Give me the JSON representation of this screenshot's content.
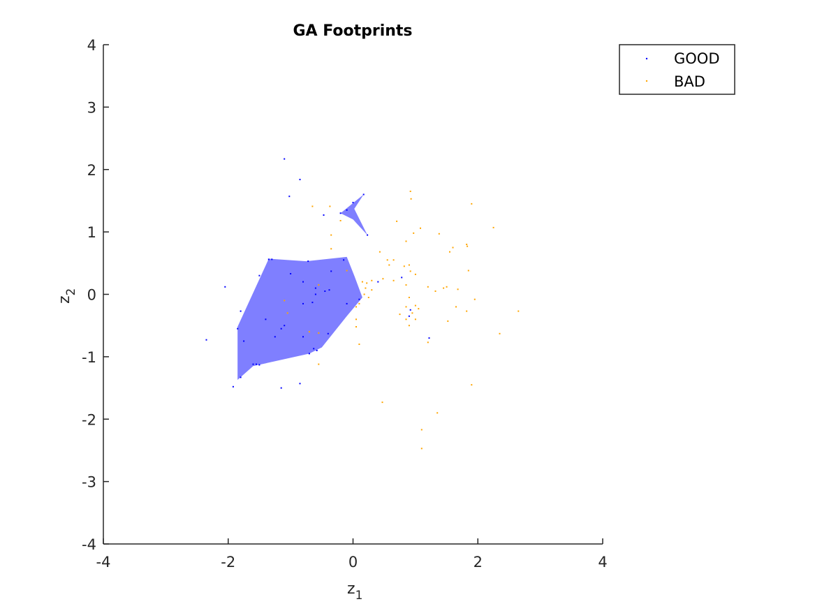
{
  "colors": {
    "good": "#0000ff",
    "bad": "#ffa500",
    "footprint_fill": "#0000ff",
    "axis": "#262626"
  },
  "chart_data": {
    "type": "scatter",
    "title": "GA Footprints",
    "xlabel_base": "z",
    "xlabel_sub": "1",
    "ylabel_base": "z",
    "ylabel_sub": "2",
    "xlim": [
      -4,
      4
    ],
    "ylim": [
      -4,
      4
    ],
    "xticks": [
      -4,
      -2,
      0,
      2,
      4
    ],
    "yticks": [
      -4,
      -3,
      -2,
      -1,
      0,
      1,
      2,
      3,
      4
    ],
    "grid": false,
    "legend_position": "top-right",
    "series": [
      {
        "name": "GOOD",
        "color": "#0000ff",
        "points": [
          [
            -1.1,
            2.17
          ],
          [
            -0.85,
            1.84
          ],
          [
            -1.02,
            1.57
          ],
          [
            -0.47,
            1.27
          ],
          [
            -0.1,
            1.35
          ],
          [
            0.17,
            1.6
          ],
          [
            0.0,
            1.47
          ],
          [
            0.23,
            0.95
          ],
          [
            -0.2,
            1.3
          ],
          [
            -2.05,
            0.12
          ],
          [
            -1.35,
            0.56
          ],
          [
            -1.3,
            0.56
          ],
          [
            -0.72,
            0.53
          ],
          [
            -0.15,
            0.55
          ],
          [
            -1.0,
            0.33
          ],
          [
            -0.35,
            0.37
          ],
          [
            -1.5,
            0.3
          ],
          [
            -0.8,
            0.2
          ],
          [
            -0.6,
            0.1
          ],
          [
            -0.45,
            0.05
          ],
          [
            -0.38,
            0.07
          ],
          [
            -0.6,
            0.0
          ],
          [
            -0.8,
            -0.15
          ],
          [
            -0.65,
            -0.13
          ],
          [
            -0.1,
            -0.15
          ],
          [
            0.1,
            -0.08
          ],
          [
            -1.8,
            -0.27
          ],
          [
            -1.4,
            -0.4
          ],
          [
            -1.15,
            -0.55
          ],
          [
            -1.1,
            -0.5
          ],
          [
            -1.25,
            -0.68
          ],
          [
            -1.75,
            -0.75
          ],
          [
            -0.8,
            -0.68
          ],
          [
            -0.4,
            -0.63
          ],
          [
            -0.63,
            -0.87
          ],
          [
            -0.58,
            -0.9
          ],
          [
            -0.7,
            -0.95
          ],
          [
            -1.85,
            -0.55
          ],
          [
            -1.6,
            -1.12
          ],
          [
            -1.55,
            -1.12
          ],
          [
            -1.5,
            -1.13
          ],
          [
            -1.92,
            -1.48
          ],
          [
            -1.15,
            -1.5
          ],
          [
            -0.85,
            -1.43
          ],
          [
            -1.8,
            -1.33
          ],
          [
            -2.35,
            -0.73
          ],
          [
            0.4,
            0.2
          ],
          [
            0.78,
            0.27
          ],
          [
            0.92,
            -0.25
          ],
          [
            1.22,
            -0.7
          ],
          [
            0.9,
            -0.35
          ]
        ]
      },
      {
        "name": "BAD",
        "color": "#ffa500",
        "points": [
          [
            0.92,
            1.65
          ],
          [
            0.93,
            1.53
          ],
          [
            -0.65,
            1.41
          ],
          [
            -0.37,
            1.41
          ],
          [
            -0.2,
            1.18
          ],
          [
            0.7,
            1.17
          ],
          [
            1.9,
            1.45
          ],
          [
            2.25,
            1.07
          ],
          [
            1.08,
            1.06
          ],
          [
            0.97,
            0.98
          ],
          [
            -0.35,
            0.95
          ],
          [
            1.38,
            0.97
          ],
          [
            0.85,
            0.85
          ],
          [
            1.82,
            0.8
          ],
          [
            1.83,
            0.77
          ],
          [
            1.6,
            0.75
          ],
          [
            -0.35,
            0.73
          ],
          [
            0.43,
            0.68
          ],
          [
            0.55,
            0.55
          ],
          [
            0.65,
            0.55
          ],
          [
            1.55,
            0.68
          ],
          [
            0.58,
            0.47
          ],
          [
            0.9,
            0.47
          ],
          [
            0.82,
            0.45
          ],
          [
            1.85,
            0.38
          ],
          [
            -0.1,
            0.38
          ],
          [
            0.92,
            0.37
          ],
          [
            1.0,
            0.32
          ],
          [
            0.48,
            0.25
          ],
          [
            0.3,
            0.22
          ],
          [
            0.65,
            0.22
          ],
          [
            0.22,
            0.18
          ],
          [
            0.15,
            0.2
          ],
          [
            0.85,
            0.15
          ],
          [
            1.2,
            0.12
          ],
          [
            1.5,
            0.12
          ],
          [
            1.45,
            0.1
          ],
          [
            1.68,
            0.08
          ],
          [
            0.2,
            0.1
          ],
          [
            0.3,
            0.07
          ],
          [
            1.32,
            0.05
          ],
          [
            -0.55,
            0.15
          ],
          [
            0.18,
            0.0
          ],
          [
            0.25,
            -0.05
          ],
          [
            0.9,
            -0.05
          ],
          [
            1.95,
            -0.08
          ],
          [
            -1.1,
            -0.1
          ],
          [
            0.1,
            -0.15
          ],
          [
            0.05,
            -0.2
          ],
          [
            0.85,
            -0.2
          ],
          [
            1.0,
            -0.18
          ],
          [
            1.05,
            -0.23
          ],
          [
            1.65,
            -0.2
          ],
          [
            1.82,
            -0.27
          ],
          [
            0.95,
            -0.3
          ],
          [
            1.0,
            -0.4
          ],
          [
            -1.05,
            -0.3
          ],
          [
            0.75,
            -0.32
          ],
          [
            2.65,
            -0.27
          ],
          [
            0.85,
            -0.4
          ],
          [
            0.9,
            -0.5
          ],
          [
            1.52,
            -0.43
          ],
          [
            0.05,
            -0.4
          ],
          [
            0.05,
            -0.52
          ],
          [
            -0.55,
            -0.62
          ],
          [
            2.35,
            -0.63
          ],
          [
            -0.7,
            -0.6
          ],
          [
            0.1,
            -0.8
          ],
          [
            1.2,
            -0.77
          ],
          [
            -0.55,
            -1.12
          ],
          [
            1.9,
            -1.45
          ],
          [
            0.47,
            -1.73
          ],
          [
            1.35,
            -1.9
          ],
          [
            1.1,
            -2.17
          ],
          [
            1.1,
            -2.47
          ]
        ]
      }
    ],
    "footprints": [
      [
        [
          -1.85,
          -1.37
        ],
        [
          -1.6,
          -1.15
        ],
        [
          -0.7,
          -0.95
        ],
        [
          -0.5,
          -0.85
        ],
        [
          -0.1,
          -0.35
        ],
        [
          0.15,
          -0.05
        ],
        [
          0.02,
          0.3
        ],
        [
          -0.1,
          0.6
        ],
        [
          -0.75,
          0.53
        ],
        [
          -1.35,
          0.57
        ],
        [
          -1.85,
          -0.52
        ]
      ],
      [
        [
          -0.2,
          1.3
        ],
        [
          0.17,
          1.6
        ],
        [
          0.02,
          1.37
        ],
        [
          0.23,
          0.95
        ],
        [
          0.0,
          1.2
        ]
      ]
    ]
  }
}
